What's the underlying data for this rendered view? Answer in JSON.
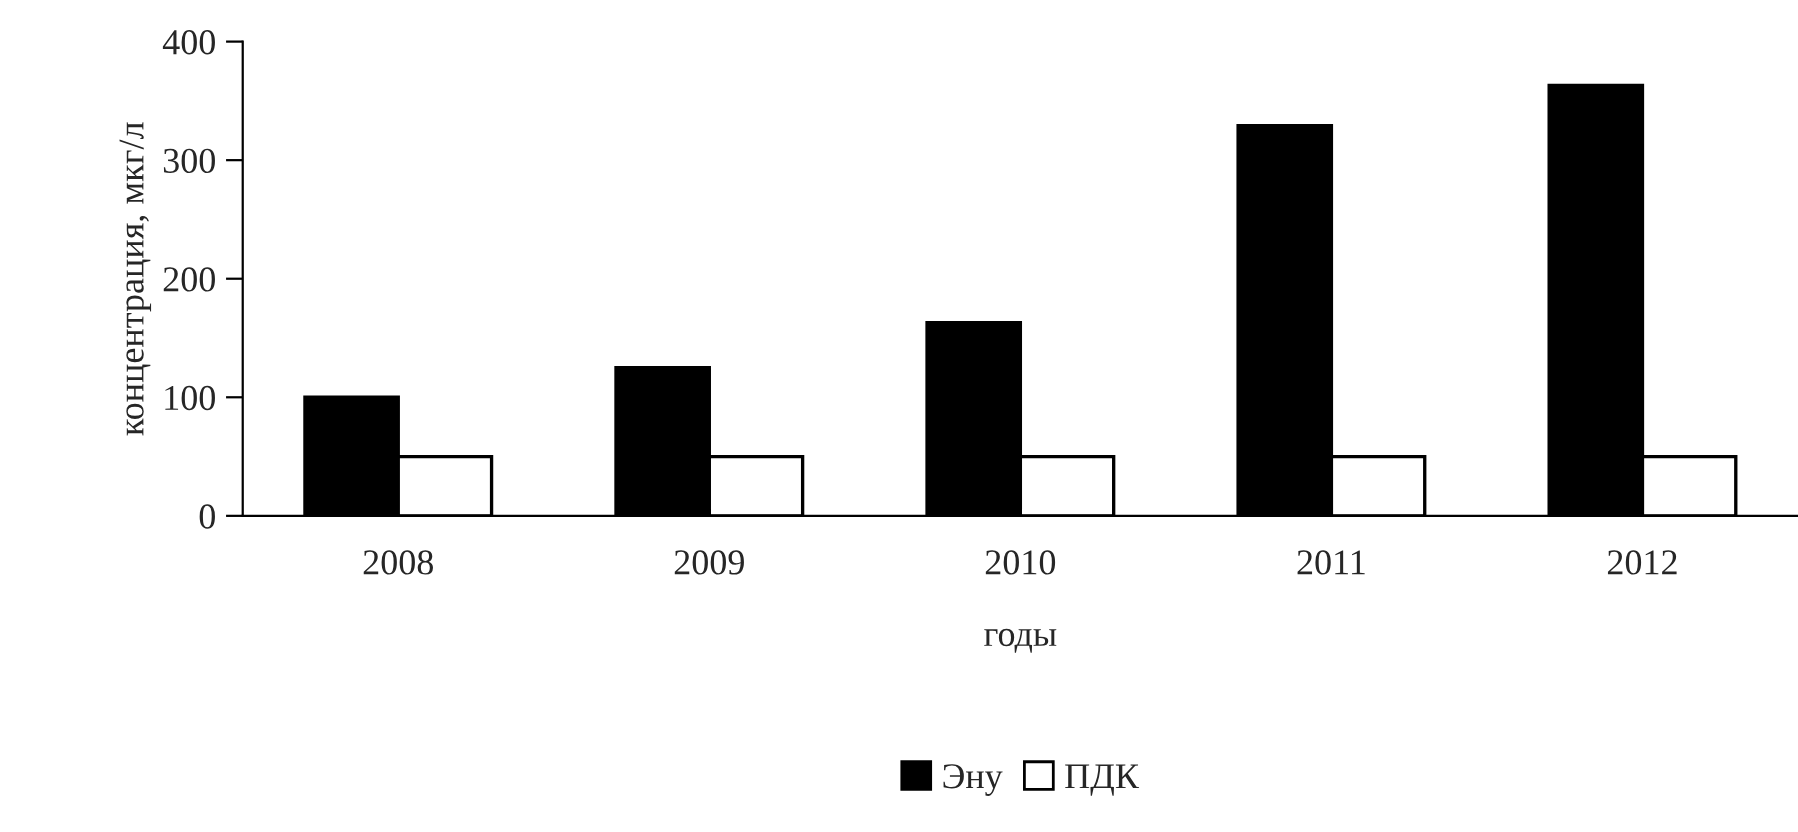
{
  "chart_data": {
    "type": "bar",
    "xlabel": "годы",
    "ylabel": "концентрация, мкг/л",
    "categories": [
      "2008",
      "2009",
      "2010",
      "2011",
      "2012"
    ],
    "series": [
      {
        "name": "Эну",
        "color": "#000000",
        "values": [
          100,
          125,
          163,
          329,
          363
        ]
      },
      {
        "name": "ПДК",
        "color": "#ffffff",
        "values": [
          50,
          50,
          50,
          50,
          50
        ]
      }
    ],
    "ylim": [
      0,
      400
    ],
    "yticks": [
      0,
      100,
      200,
      300,
      400
    ],
    "grid": false,
    "legend": "bottom"
  }
}
